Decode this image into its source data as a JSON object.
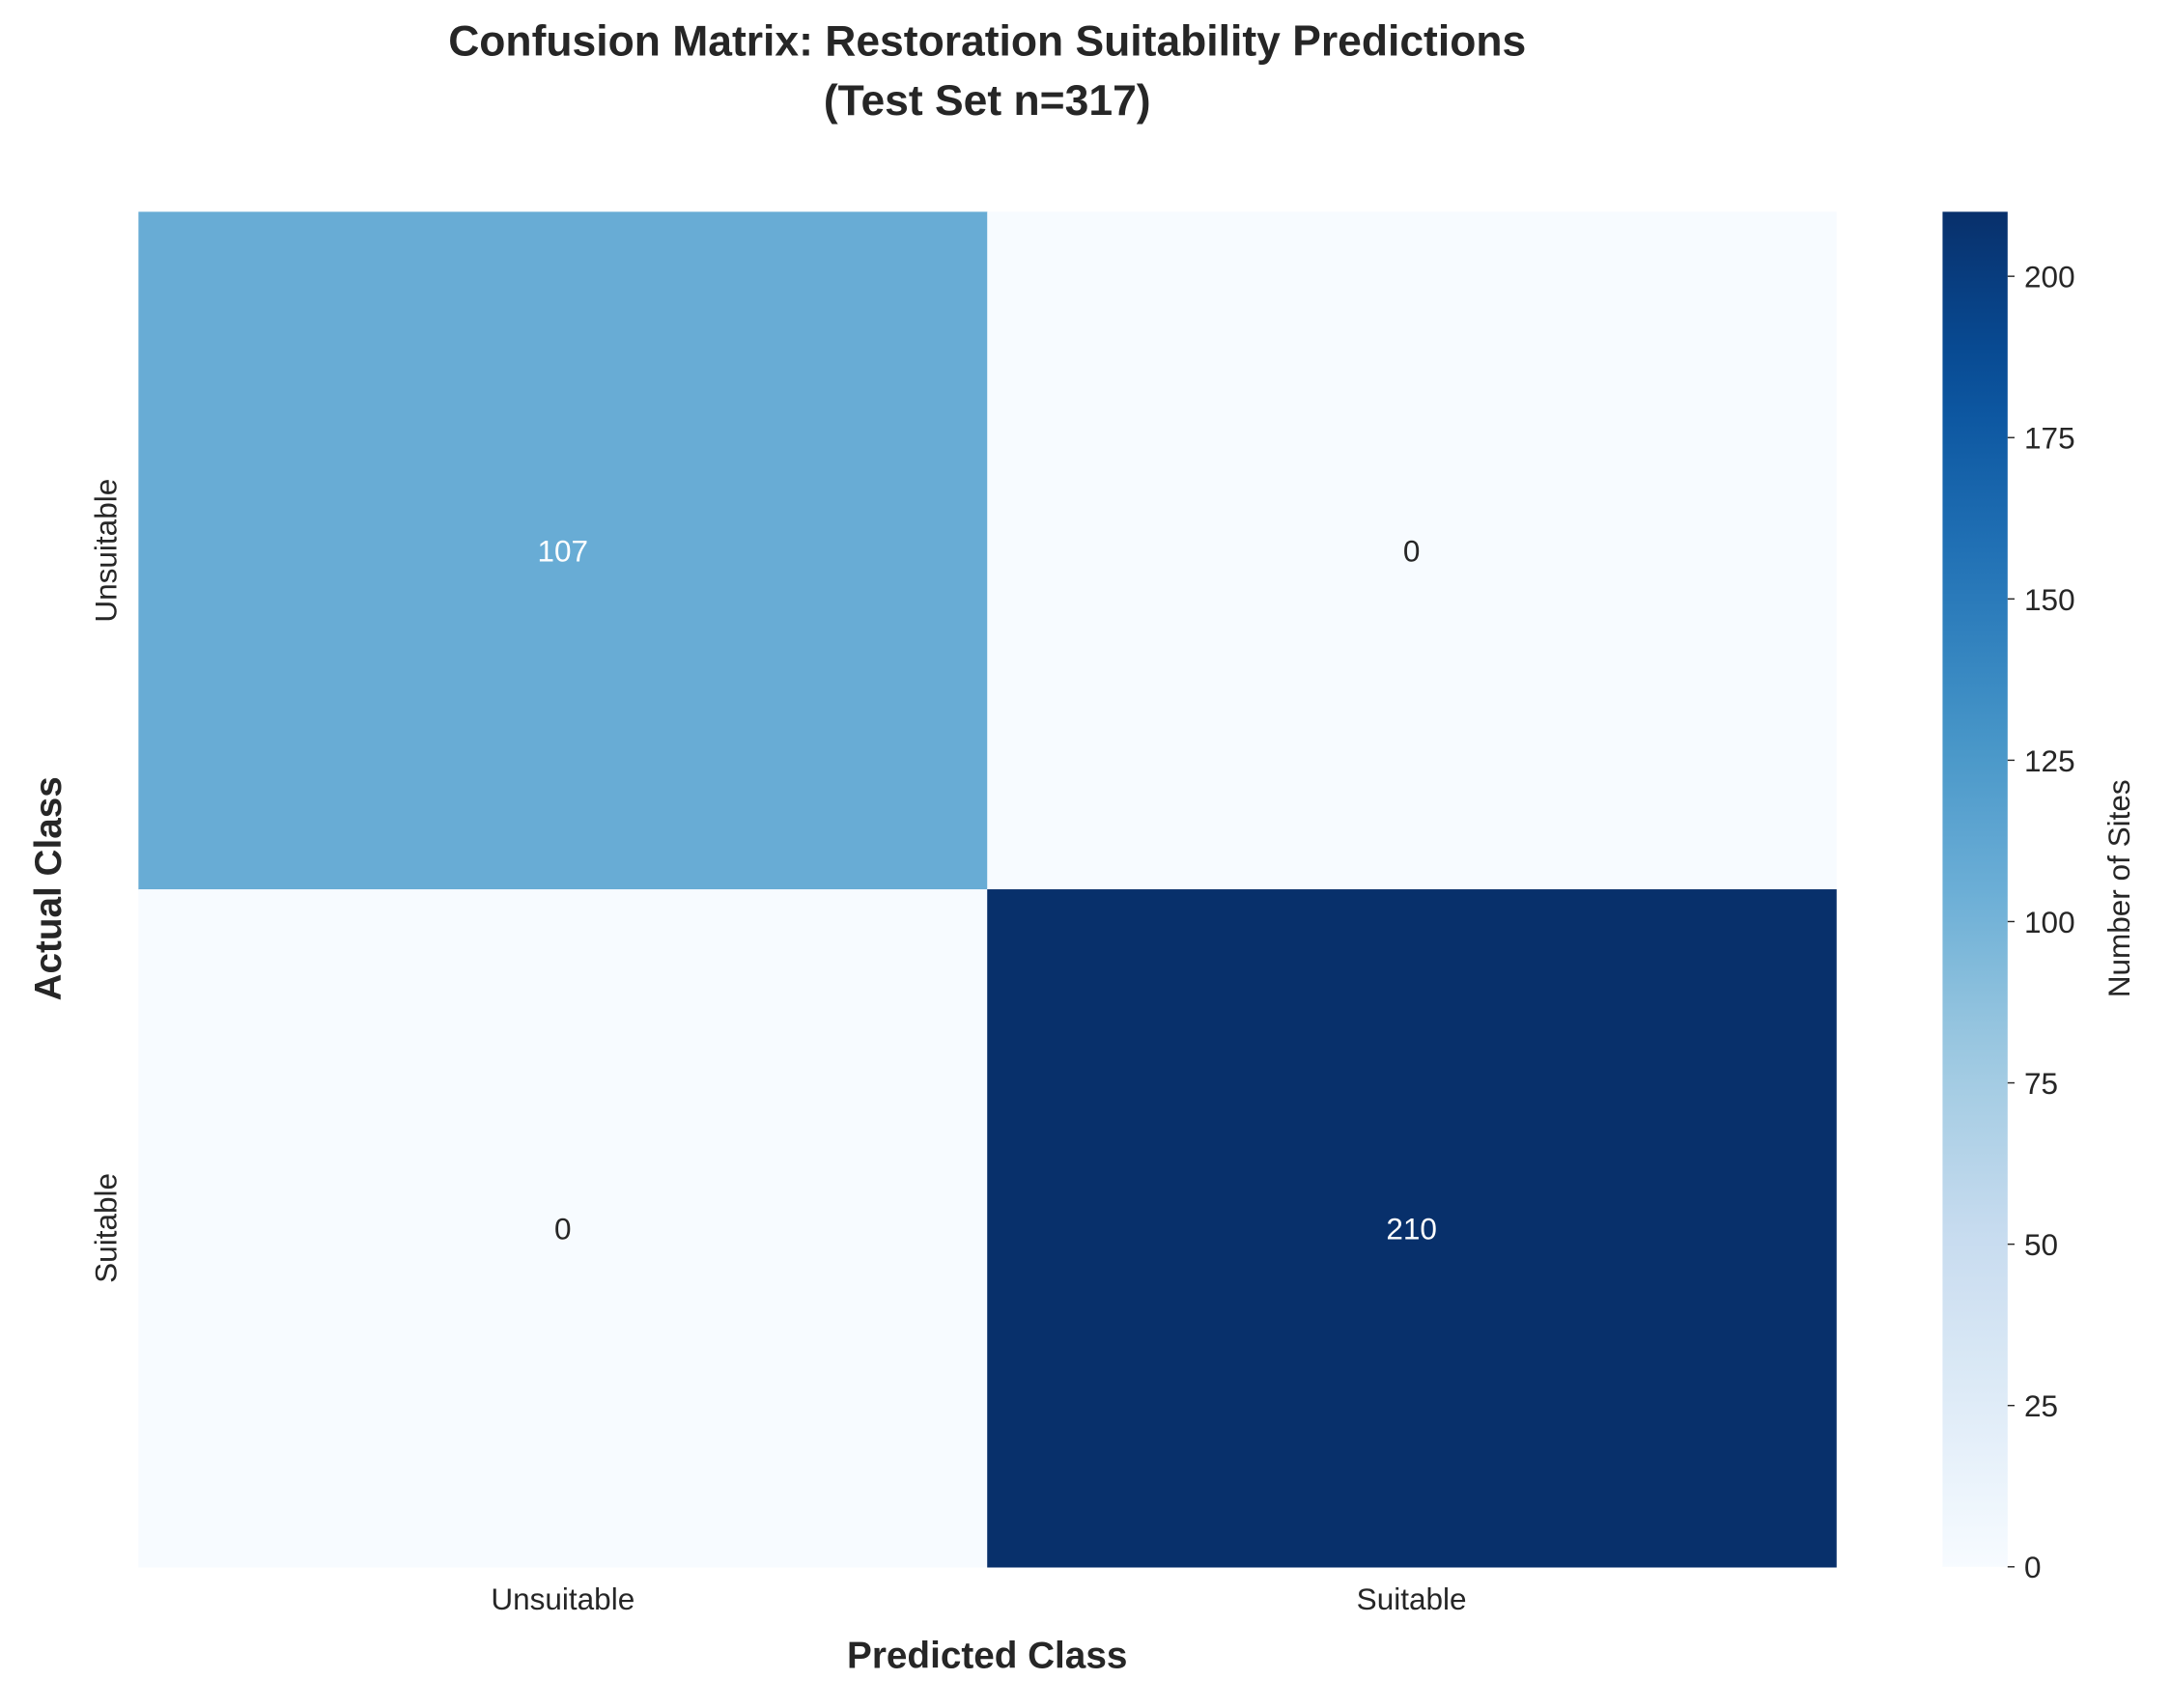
{
  "chart_data": {
    "type": "heatmap",
    "title": [
      "Confusion Matrix: Restoration Suitability Predictions",
      "(Test Set n=317)"
    ],
    "x_categories": [
      "Unsuitable",
      "Suitable"
    ],
    "y_categories": [
      "Unsuitable",
      "Suitable"
    ],
    "values": [
      [
        107,
        0
      ],
      [
        0,
        210
      ]
    ],
    "xlabel": "Predicted Class",
    "ylabel": "Actual Class",
    "colormap": "Blues",
    "colorbar_label": "Number of Sites",
    "clim": [
      0,
      210
    ],
    "cticks": [
      0,
      25,
      50,
      75,
      100,
      125,
      150,
      175,
      200
    ]
  }
}
